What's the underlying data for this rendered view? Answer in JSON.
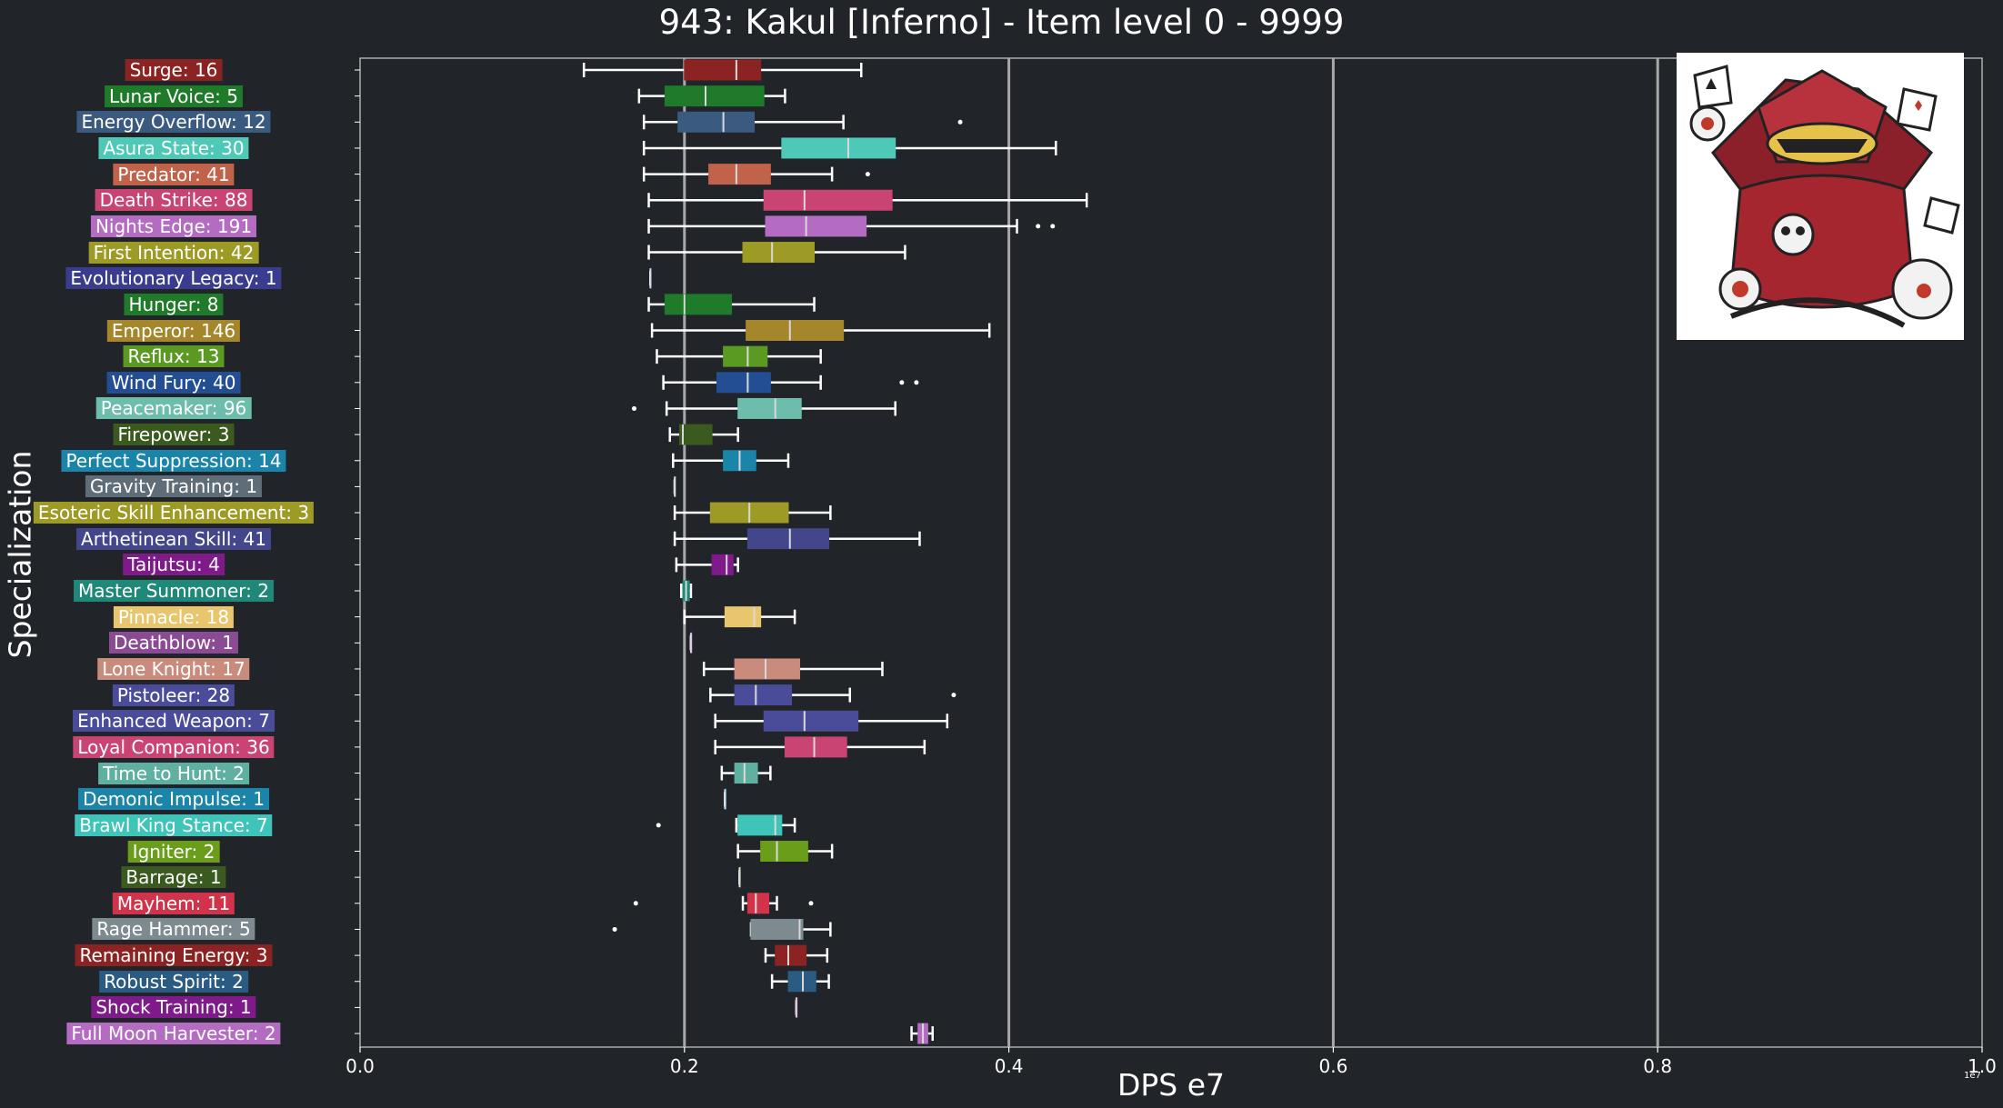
{
  "chart_data": {
    "type": "box",
    "title": "943: Kakul [Inferno] - Item level 0 - 9999",
    "xlabel": "DPS e7",
    "ylabel": "Specialization",
    "x_exponent_label": "1e7",
    "xlim": [
      0.0,
      1.0
    ],
    "xticks": [
      "0.0",
      "0.2",
      "0.4",
      "0.6",
      "0.8",
      "1.0"
    ],
    "grid_x": [
      0.2,
      0.4,
      0.6,
      0.8
    ],
    "categories": [
      {
        "label": "Surge: 16",
        "color": "#8b2323",
        "min": 0.138,
        "q1": 0.2,
        "median": 0.232,
        "q3": 0.247,
        "max": 0.309,
        "outliers": []
      },
      {
        "label": "Lunar Voice: 5",
        "color": "#1f7a2a",
        "min": 0.172,
        "q1": 0.188,
        "median": 0.213,
        "q3": 0.249,
        "max": 0.262,
        "outliers": []
      },
      {
        "label": "Energy Overflow: 12",
        "color": "#3b5a80",
        "min": 0.175,
        "q1": 0.196,
        "median": 0.224,
        "q3": 0.243,
        "max": 0.298,
        "outliers": [
          0.37
        ]
      },
      {
        "label": "Asura State: 30",
        "color": "#4ec9b8",
        "min": 0.175,
        "q1": 0.26,
        "median": 0.301,
        "q3": 0.33,
        "max": 0.429,
        "outliers": []
      },
      {
        "label": "Predator: 41",
        "color": "#c0634a",
        "min": 0.175,
        "q1": 0.215,
        "median": 0.232,
        "q3": 0.253,
        "max": 0.291,
        "outliers": [
          0.313
        ]
      },
      {
        "label": "Death Strike: 88",
        "color": "#c94472",
        "min": 0.178,
        "q1": 0.249,
        "median": 0.274,
        "q3": 0.328,
        "max": 0.448,
        "outliers": []
      },
      {
        "label": "Nights Edge: 191",
        "color": "#b46cc2",
        "min": 0.178,
        "q1": 0.25,
        "median": 0.275,
        "q3": 0.312,
        "max": 0.405,
        "outliers": [
          0.418,
          0.427
        ]
      },
      {
        "label": "First Intention: 42",
        "color": "#9e9a26",
        "min": 0.178,
        "q1": 0.236,
        "median": 0.254,
        "q3": 0.28,
        "max": 0.336,
        "outliers": []
      },
      {
        "label": "Evolutionary Legacy: 1",
        "color": "#3a3c8f",
        "min": 0.179,
        "q1": 0.179,
        "median": 0.179,
        "q3": 0.179,
        "max": 0.179,
        "outliers": []
      },
      {
        "label": "Hunger: 8",
        "color": "#1f7a2a",
        "min": 0.178,
        "q1": 0.188,
        "median": 0.2,
        "q3": 0.229,
        "max": 0.28,
        "outliers": []
      },
      {
        "label": "Emperor: 146",
        "color": "#a5862a",
        "min": 0.18,
        "q1": 0.238,
        "median": 0.265,
        "q3": 0.298,
        "max": 0.388,
        "outliers": []
      },
      {
        "label": "Reflux: 13",
        "color": "#5a9a22",
        "min": 0.183,
        "q1": 0.224,
        "median": 0.239,
        "q3": 0.251,
        "max": 0.284,
        "outliers": []
      },
      {
        "label": "Wind Fury: 40",
        "color": "#234e94",
        "min": 0.187,
        "q1": 0.22,
        "median": 0.239,
        "q3": 0.253,
        "max": 0.284,
        "outliers": [
          0.334,
          0.343
        ]
      },
      {
        "label": "Peacemaker: 96",
        "color": "#6cbdab",
        "min": 0.189,
        "q1": 0.233,
        "median": 0.256,
        "q3": 0.272,
        "max": 0.33,
        "outliers": [
          0.169
        ]
      },
      {
        "label": "Firepower: 3",
        "color": "#3a5a1f",
        "min": 0.191,
        "q1": 0.197,
        "median": 0.199,
        "q3": 0.217,
        "max": 0.233,
        "outliers": []
      },
      {
        "label": "Perfect Suppression: 14",
        "color": "#1a85a8",
        "min": 0.193,
        "q1": 0.224,
        "median": 0.234,
        "q3": 0.244,
        "max": 0.264,
        "outliers": []
      },
      {
        "label": "Gravity Training: 1",
        "color": "#5f6d78",
        "min": 0.194,
        "q1": 0.194,
        "median": 0.194,
        "q3": 0.194,
        "max": 0.194,
        "outliers": []
      },
      {
        "label": "Esoteric Skill Enhancement: 3",
        "color": "#9e9a26",
        "min": 0.194,
        "q1": 0.216,
        "median": 0.24,
        "q3": 0.264,
        "max": 0.29,
        "outliers": []
      },
      {
        "label": "Arthetinean Skill: 41",
        "color": "#44468c",
        "min": 0.194,
        "q1": 0.239,
        "median": 0.265,
        "q3": 0.289,
        "max": 0.345,
        "outliers": []
      },
      {
        "label": "Taijutsu: 4",
        "color": "#7e1a8a",
        "min": 0.195,
        "q1": 0.217,
        "median": 0.226,
        "q3": 0.23,
        "max": 0.233,
        "outliers": []
      },
      {
        "label": "Master Summoner: 2",
        "color": "#1f8878",
        "min": 0.198,
        "q1": 0.199,
        "median": 0.201,
        "q3": 0.203,
        "max": 0.204,
        "outliers": []
      },
      {
        "label": "Pinnacle: 18",
        "color": "#e8c66e",
        "min": 0.2,
        "q1": 0.225,
        "median": 0.243,
        "q3": 0.247,
        "max": 0.268,
        "outliers": []
      },
      {
        "label": "Deathblow: 1",
        "color": "#8a4a94",
        "min": 0.204,
        "q1": 0.204,
        "median": 0.204,
        "q3": 0.204,
        "max": 0.204,
        "outliers": []
      },
      {
        "label": "Lone Knight: 17",
        "color": "#c98c7c",
        "min": 0.212,
        "q1": 0.231,
        "median": 0.25,
        "q3": 0.271,
        "max": 0.322,
        "outliers": []
      },
      {
        "label": "Pistoleer: 28",
        "color": "#4a4c9a",
        "min": 0.216,
        "q1": 0.231,
        "median": 0.244,
        "q3": 0.266,
        "max": 0.302,
        "outliers": [
          0.366
        ]
      },
      {
        "label": "Enhanced Weapon: 7",
        "color": "#4a4c9a",
        "min": 0.219,
        "q1": 0.249,
        "median": 0.274,
        "q3": 0.307,
        "max": 0.362,
        "outliers": []
      },
      {
        "label": "Loyal Companion: 36",
        "color": "#c94472",
        "min": 0.219,
        "q1": 0.262,
        "median": 0.28,
        "q3": 0.3,
        "max": 0.348,
        "outliers": []
      },
      {
        "label": "Time to Hunt: 2",
        "color": "#5fb0a0",
        "min": 0.223,
        "q1": 0.231,
        "median": 0.237,
        "q3": 0.245,
        "max": 0.253,
        "outliers": []
      },
      {
        "label": "Demonic Impulse: 1",
        "color": "#1a85a8",
        "min": 0.225,
        "q1": 0.225,
        "median": 0.225,
        "q3": 0.225,
        "max": 0.225,
        "outliers": []
      },
      {
        "label": "Brawl King Stance: 7",
        "color": "#3ec4b8",
        "min": 0.232,
        "q1": 0.233,
        "median": 0.256,
        "q3": 0.26,
        "max": 0.268,
        "outliers": [
          0.184
        ]
      },
      {
        "label": "Igniter: 2",
        "color": "#6a9e1a",
        "min": 0.233,
        "q1": 0.247,
        "median": 0.257,
        "q3": 0.276,
        "max": 0.291,
        "outliers": []
      },
      {
        "label": "Barrage: 1",
        "color": "#3a5a1f",
        "min": 0.234,
        "q1": 0.234,
        "median": 0.234,
        "q3": 0.234,
        "max": 0.234,
        "outliers": []
      },
      {
        "label": "Mayhem: 11",
        "color": "#d1344a",
        "min": 0.236,
        "q1": 0.239,
        "median": 0.244,
        "q3": 0.252,
        "max": 0.257,
        "outliers": [
          0.17,
          0.278
        ]
      },
      {
        "label": "Rage Hammer: 5",
        "color": "#7d8a90",
        "min": 0.241,
        "q1": 0.241,
        "median": 0.271,
        "q3": 0.273,
        "max": 0.29,
        "outliers": [
          0.157
        ]
      },
      {
        "label": "Remaining Energy: 3",
        "color": "#8b2323",
        "min": 0.25,
        "q1": 0.256,
        "median": 0.264,
        "q3": 0.275,
        "max": 0.288,
        "outliers": []
      },
      {
        "label": "Robust Spirit: 2",
        "color": "#2b5a82",
        "min": 0.254,
        "q1": 0.264,
        "median": 0.273,
        "q3": 0.281,
        "max": 0.289,
        "outliers": []
      },
      {
        "label": "Shock Training: 1",
        "color": "#7e1a8a",
        "min": 0.269,
        "q1": 0.269,
        "median": 0.269,
        "q3": 0.269,
        "max": 0.269,
        "outliers": []
      },
      {
        "label": "Full Moon Harvester: 2",
        "color": "#b46cc2",
        "min": 0.34,
        "q1": 0.344,
        "median": 0.347,
        "q3": 0.35,
        "max": 0.353,
        "outliers": []
      }
    ]
  },
  "image": {
    "icon": "kakul-portrait-image",
    "card_colors": [
      "#ffffff",
      "#222222",
      "#c0392b"
    ]
  }
}
